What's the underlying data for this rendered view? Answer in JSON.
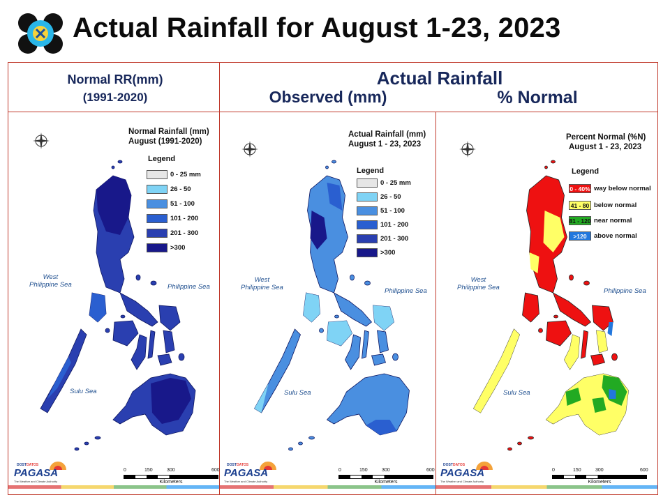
{
  "slide": {
    "title": "Actual Rainfall for August 1-23, 2023"
  },
  "headers": {
    "normal_line1": "Normal RR(mm)",
    "normal_line2": "(1991-2020)",
    "actual": "Actual Rainfall",
    "observed": "Observed (mm)",
    "percent": "% Normal"
  },
  "panels": [
    {
      "title_line1": "Normal Rainfall (mm)",
      "title_line2": "August (1991-2020)",
      "legend_title": "Legend",
      "legend": [
        {
          "label": "0 - 25 mm",
          "color": "#e6e6e6"
        },
        {
          "label": "26 - 50",
          "color": "#7fd3f5"
        },
        {
          "label": "51 - 100",
          "color": "#4a8fe0"
        },
        {
          "label": "101 - 200",
          "color": "#2a5fd0"
        },
        {
          "label": "201 - 300",
          "color": "#2a3fb0"
        },
        {
          "label": ">300",
          "color": "#18188a"
        }
      ]
    },
    {
      "title_line1": "Actual Rainfall (mm)",
      "title_line2": "August 1 - 23, 2023",
      "legend_title": "Legend",
      "legend": [
        {
          "label": "0 - 25 mm",
          "color": "#e6e6e6"
        },
        {
          "label": "26 - 50",
          "color": "#7fd3f5"
        },
        {
          "label": "51 - 100",
          "color": "#4a8fe0"
        },
        {
          "label": "101 - 200",
          "color": "#2a5fd0"
        },
        {
          "label": "201 - 300",
          "color": "#2a3fb0"
        },
        {
          "label": ">300",
          "color": "#18188a"
        }
      ]
    },
    {
      "title_line1": "Percent Normal (%N)",
      "title_line2": "August 1 - 23, 2023",
      "legend_title": "Legend",
      "legend": [
        {
          "swatch": "0 - 40%",
          "label": "way below normal",
          "color": "#ee1111"
        },
        {
          "swatch": "41 - 80",
          "label": "below normal",
          "color": "#ffff66"
        },
        {
          "swatch": "81 - 120",
          "label": "near normal",
          "color": "#22aa22"
        },
        {
          "swatch": ">120",
          "label": "above normal",
          "color": "#2277dd"
        }
      ]
    }
  ],
  "map_labels": {
    "west_sea_1": "West",
    "west_sea_2": "Philippine Sea",
    "east_sea": "Philippine Sea",
    "sulu_sea": "Sulu Sea",
    "compass_n": "N",
    "compass_s": "S",
    "compass_e": "E",
    "compass_w": "W"
  },
  "scale": {
    "ticks": [
      "0",
      "150",
      "300",
      "600"
    ],
    "unit": "Kilometers"
  },
  "branding": {
    "dost": "DOST",
    "name": "PAGASA",
    "prefix": "DATOS",
    "tagline": "The Weather and Climate Authority"
  },
  "colors": {
    "frame": "#c0392b",
    "header_text": "#17275a",
    "strip": [
      "#e57373",
      "#f5d76e",
      "#8bc48a",
      "#64b5f6"
    ]
  }
}
